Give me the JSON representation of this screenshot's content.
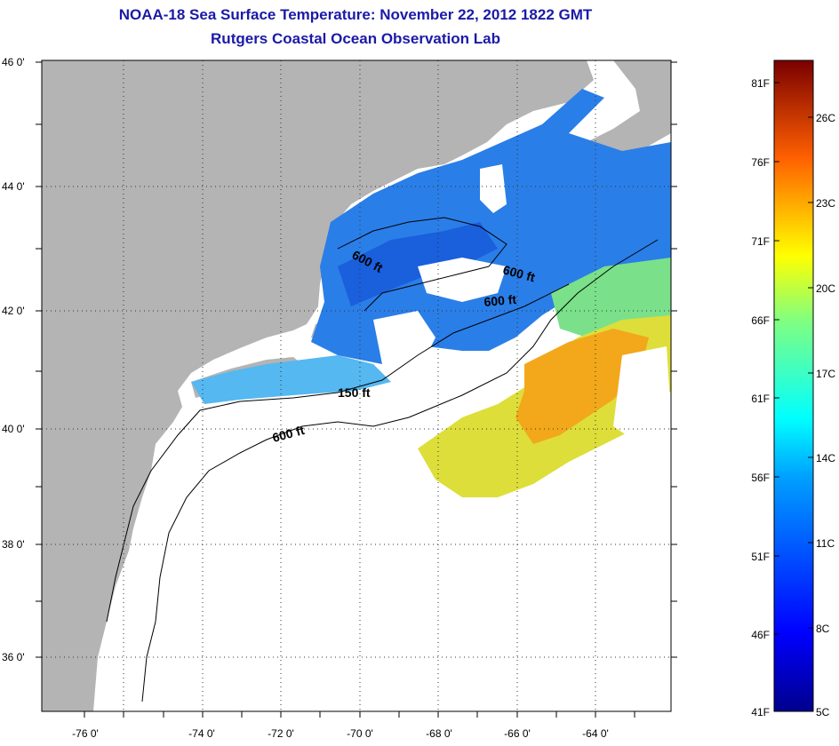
{
  "title_line1": "NOAA-18 Sea Surface Temperature:  November 22, 2012 1822 GMT",
  "title_line2": "Rutgers Coastal Ocean Observation Lab",
  "lat_labels": [
    "46 0'",
    "44 0'",
    "42 0'",
    "40 0'",
    "38 0'",
    "36 0'"
  ],
  "lon_labels": [
    "-76 0'",
    "-74 0'",
    "-72 0'",
    "-70 0'",
    "-68 0'",
    "-66 0'",
    "-64 0'"
  ],
  "depth_labels": [
    "600 ft",
    "600 ft",
    "600 ft",
    "150 ft",
    "600 ft"
  ],
  "colorbar": {
    "fahrenheit": [
      "81F",
      "76F",
      "71F",
      "66F",
      "61F",
      "56F",
      "51F",
      "46F",
      "41F"
    ],
    "celsius": [
      "26C",
      "23C",
      "20C",
      "17C",
      "14C",
      "11C",
      "8C",
      "5C"
    ]
  },
  "colors": {
    "land": "#b4b4b4",
    "ocean_nodata": "#ffffff",
    "title": "#1a1aa8"
  }
}
